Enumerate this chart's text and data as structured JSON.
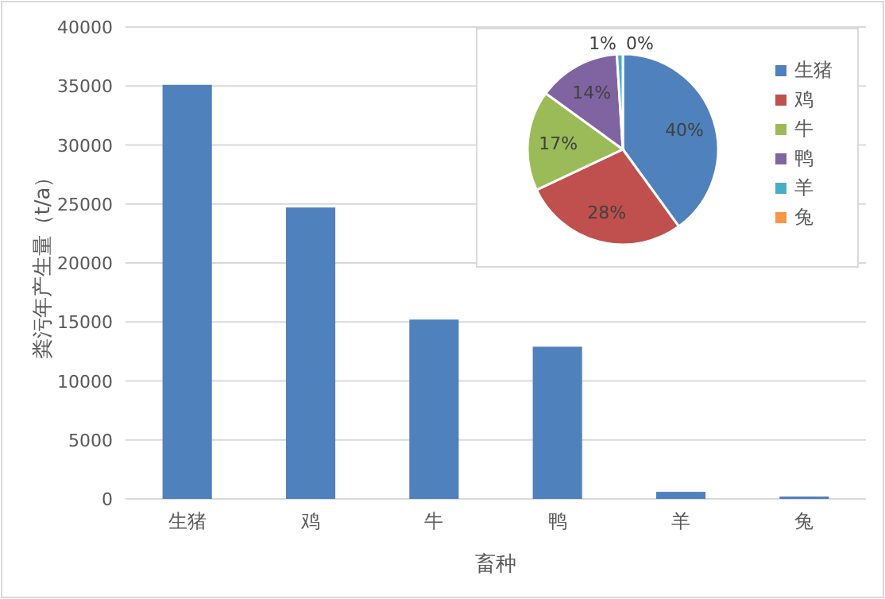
{
  "chart_data": [
    {
      "type": "bar",
      "xlabel": "畜种",
      "ylabel": "粪污年产生量（t/a）",
      "categories": [
        "生猪",
        "鸡",
        "牛",
        "鸭",
        "羊",
        "兔"
      ],
      "values": [
        35100,
        24700,
        15200,
        12900,
        600,
        200
      ],
      "color": "#4f81bd",
      "ylim": [
        0,
        40000
      ],
      "yticks": [
        0,
        5000,
        10000,
        15000,
        20000,
        25000,
        30000,
        35000,
        40000
      ],
      "grid": "y"
    },
    {
      "type": "pie",
      "categories": [
        "生猪",
        "鸡",
        "牛",
        "鸭",
        "羊",
        "兔"
      ],
      "values": [
        40,
        28,
        17,
        14,
        1,
        0
      ],
      "colors": [
        "#4f81bd",
        "#c0504d",
        "#9bbb59",
        "#8064a2",
        "#4bacc6",
        "#f79646"
      ],
      "value_labels": [
        "40%",
        "28%",
        "17%",
        "14%",
        "1%",
        "0%"
      ],
      "legend": "right"
    }
  ]
}
